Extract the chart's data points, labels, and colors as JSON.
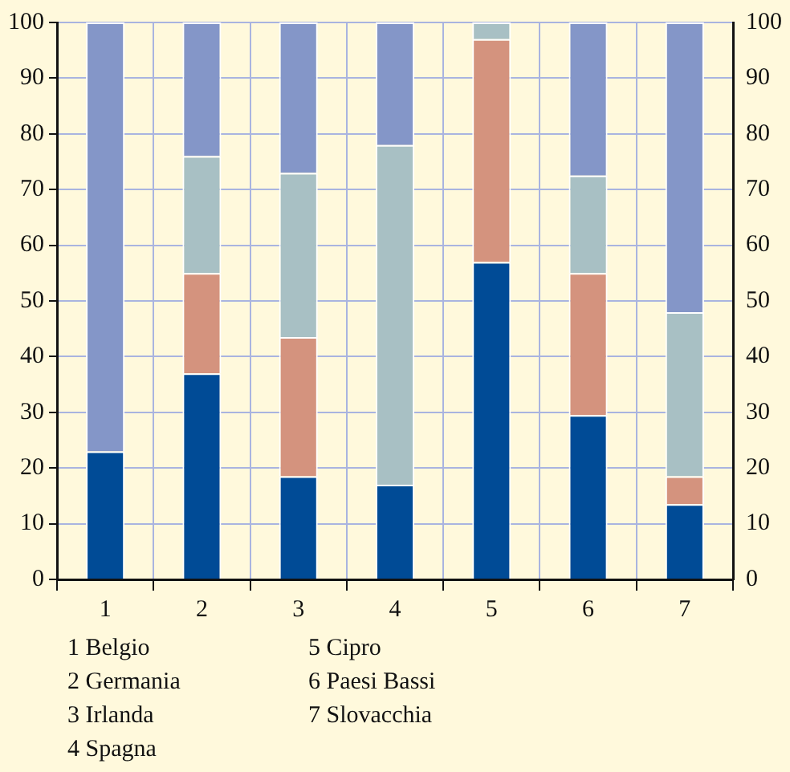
{
  "chart_data": {
    "type": "bar",
    "stacked": true,
    "categories": [
      "1",
      "2",
      "3",
      "4",
      "5",
      "6",
      "7"
    ],
    "series": [
      {
        "color": "#004b96",
        "values": [
          23,
          37,
          18.5,
          17,
          57,
          29.5,
          13.5
        ]
      },
      {
        "color": "#d4937e",
        "values": [
          0,
          18,
          25,
          0,
          40,
          25.5,
          5
        ]
      },
      {
        "color": "#a8c0c4",
        "values": [
          0,
          21,
          29.5,
          61,
          3,
          17.5,
          29.5
        ]
      },
      {
        "color": "#8496c8",
        "values": [
          77,
          24,
          27,
          22,
          0,
          27.5,
          52
        ]
      }
    ],
    "ylim": [
      0,
      100
    ],
    "yticks": [
      0,
      10,
      20,
      30,
      40,
      50,
      60,
      70,
      80,
      90,
      100
    ],
    "y2lim": [
      0,
      100
    ],
    "y2ticks": [
      0,
      10,
      20,
      30,
      40,
      50,
      60,
      70,
      80,
      90,
      100
    ],
    "grid": true,
    "legend": false,
    "annotations": [
      "1 Belgio",
      "2 Germania",
      "3 Irlanda",
      "4 Spagna",
      "5 Cipro",
      "6 Paesi Bassi",
      "7 Slovacchia"
    ]
  }
}
